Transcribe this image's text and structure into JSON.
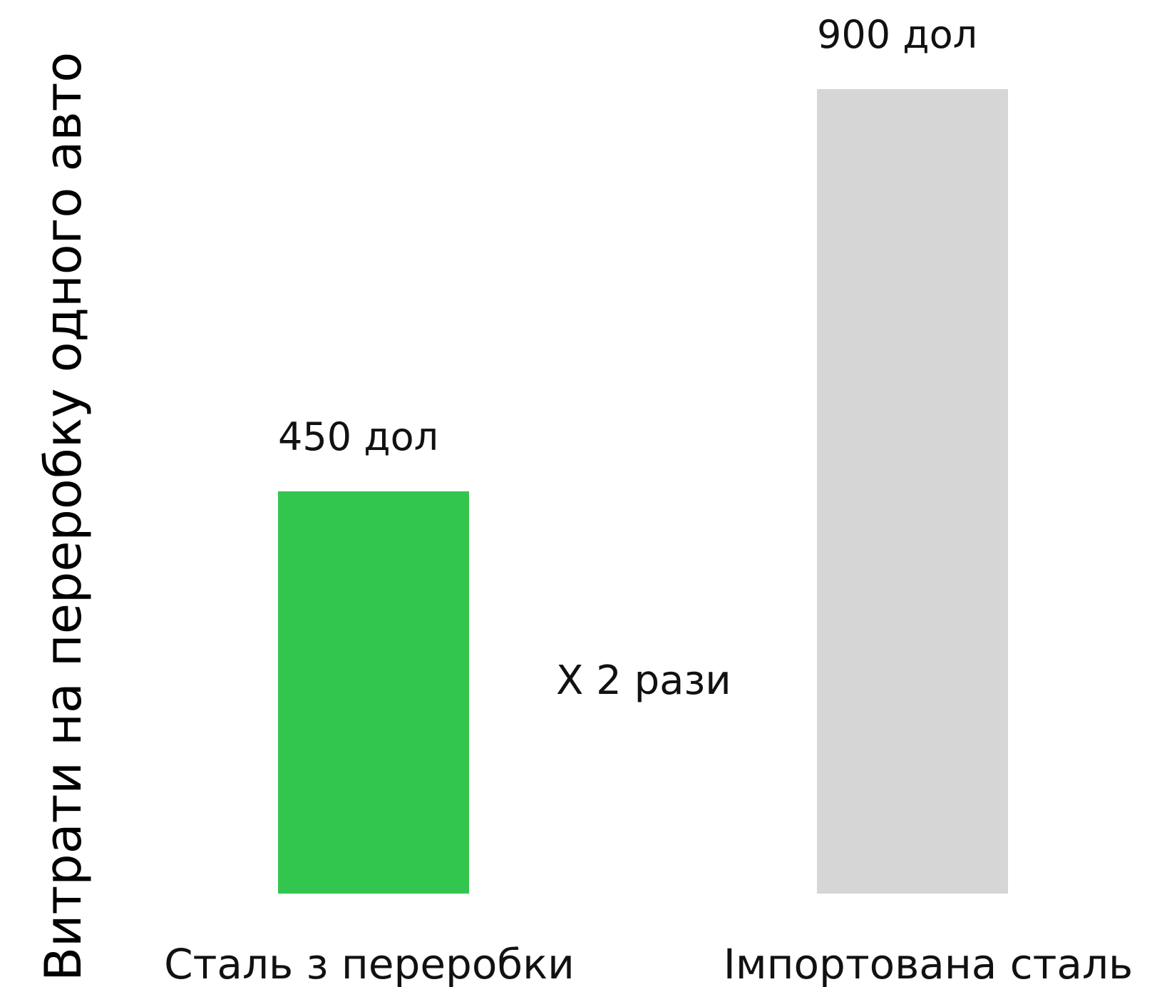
{
  "chart_data": {
    "type": "bar",
    "title": "",
    "xlabel": "",
    "ylabel": "Витрати на переробку одного авто",
    "categories": [
      "Сталь з переробки",
      "Імпортована сталь"
    ],
    "values": [
      450,
      900
    ],
    "value_labels": [
      "450 дол",
      "900 дол"
    ],
    "colors": [
      "#33c64f",
      "#d6d6d6"
    ],
    "annotation": "X 2 рази",
    "ylim": [
      0,
      900
    ],
    "grid": false,
    "axes_visible": false
  }
}
